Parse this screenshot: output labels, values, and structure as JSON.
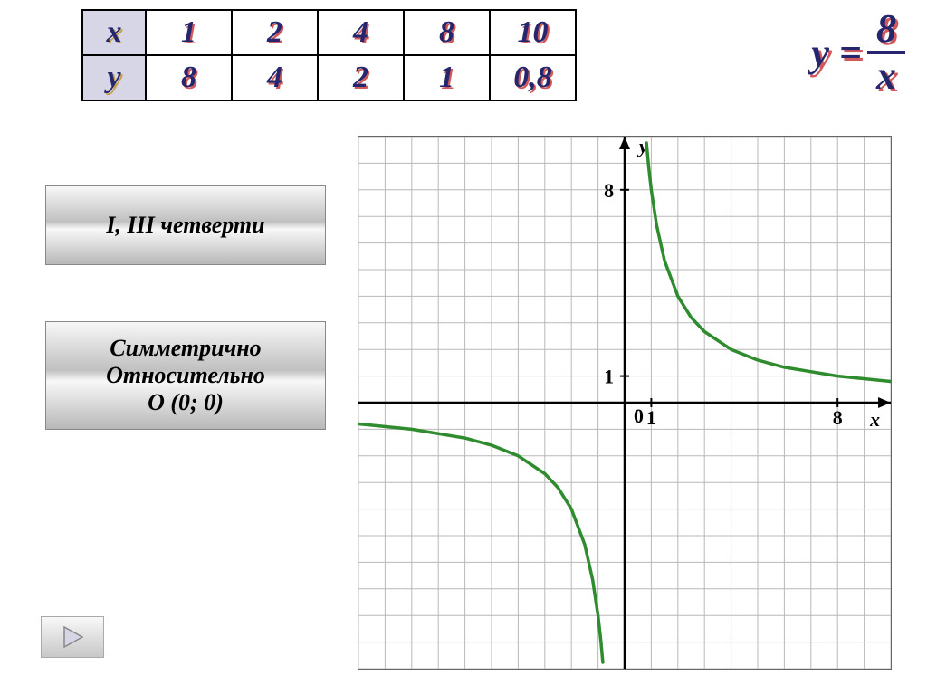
{
  "table": {
    "columns": [
      "1",
      "2",
      "4",
      "8",
      "10"
    ],
    "rows": {
      "x_label": "x",
      "y_label": "y",
      "y_values": [
        "8",
        "4",
        "2",
        "1",
        "0,8"
      ]
    },
    "header_bg": "#d6d6e6",
    "cell_bg": "#ffffff",
    "border_color": "#000000",
    "num_color": "#26266e",
    "num_shadow": "#d05a5a",
    "var_shadow": "#c4a050",
    "font_size": 34
  },
  "equation": {
    "lhs": "y =",
    "numerator": "8",
    "denominator": "x",
    "color": "#26266e",
    "shadow_color": "#d05a5a",
    "font_size": 44
  },
  "properties": {
    "box1": "I, III четверти",
    "box2": "Симметрично\nОтносительно\nО (0; 0)",
    "bg_gradient": [
      "#f8f8f8",
      "#c0c0c0",
      "#f8f8f8",
      "#b8b8b8"
    ],
    "font_size": 26
  },
  "nav": {
    "icon": "triangle-right",
    "fill": "#d6d6e6",
    "stroke": "#888888"
  },
  "chart": {
    "type": "hyperbola",
    "function": "y = 8/x",
    "xlim": [
      -10,
      10
    ],
    "ylim": [
      -10,
      10
    ],
    "xtick_major": [
      1,
      8
    ],
    "ytick_major": [
      1,
      8
    ],
    "x_label": "x",
    "y_label": "y",
    "origin_label": "0",
    "grid_step": 1,
    "grid_color": "#b8b8b8",
    "axis_color": "#000000",
    "curve_color": "#2e8b2e",
    "curve_width": 3.5,
    "background_color": "#ffffff",
    "tick_label_fontsize": 22,
    "axis_label_fontsize": 22,
    "axis_label_style": "italic bold",
    "curve_points_q1": [
      [
        0.82,
        9.76
      ],
      [
        0.9,
        8.89
      ],
      [
        1,
        8
      ],
      [
        1.2,
        6.67
      ],
      [
        1.5,
        5.33
      ],
      [
        2,
        4
      ],
      [
        2.5,
        3.2
      ],
      [
        3,
        2.67
      ],
      [
        4,
        2
      ],
      [
        5,
        1.6
      ],
      [
        6,
        1.33
      ],
      [
        8,
        1
      ],
      [
        10,
        0.8
      ]
    ],
    "curve_points_q3": [
      [
        -10,
        -0.8
      ],
      [
        -8,
        -1
      ],
      [
        -6,
        -1.33
      ],
      [
        -5,
        -1.6
      ],
      [
        -4,
        -2
      ],
      [
        -3,
        -2.67
      ],
      [
        -2.5,
        -3.2
      ],
      [
        -2,
        -4
      ],
      [
        -1.5,
        -5.33
      ],
      [
        -1.2,
        -6.67
      ],
      [
        -1,
        -8
      ],
      [
        -0.9,
        -8.89
      ],
      [
        -0.82,
        -9.76
      ]
    ]
  }
}
